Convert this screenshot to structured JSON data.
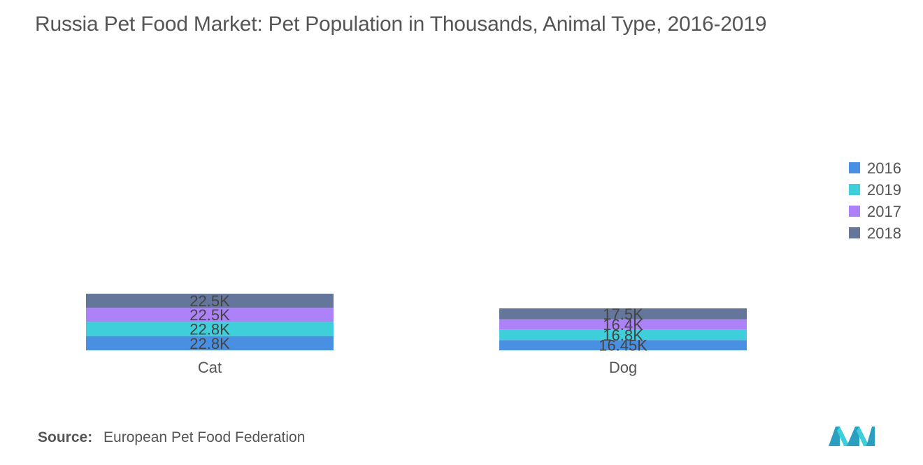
{
  "title": "Russia Pet Food Market:  Pet Population in Thousands, Animal Type, 2016-2019",
  "source": {
    "label": "Source:",
    "text": "European Pet Food Federation"
  },
  "colors": {
    "2016": "#4a90e2",
    "2019": "#3ecfdb",
    "2017": "#ad82f8",
    "2018": "#64779a",
    "text": "#555555",
    "bar_text": "#444444"
  },
  "chart_data": {
    "type": "bar",
    "stacked": true,
    "categories": [
      "Cat",
      "Dog"
    ],
    "series": [
      {
        "name": "2016",
        "values": [
          22.8,
          16.45
        ],
        "labels": [
          "22.8K",
          "16.45K"
        ]
      },
      {
        "name": "2019",
        "values": [
          22.8,
          16.8
        ],
        "labels": [
          "22.8K",
          "16.8K"
        ]
      },
      {
        "name": "2017",
        "values": [
          22.5,
          16.4
        ],
        "labels": [
          "22.5K",
          "16.4K"
        ]
      },
      {
        "name": "2018",
        "values": [
          22.5,
          17.5
        ],
        "labels": [
          "22.5K",
          "17.5K"
        ]
      }
    ],
    "legend": [
      "2016",
      "2019",
      "2017",
      "2018"
    ],
    "legend_position": "right",
    "grid": false,
    "y_axis_visible": false
  }
}
